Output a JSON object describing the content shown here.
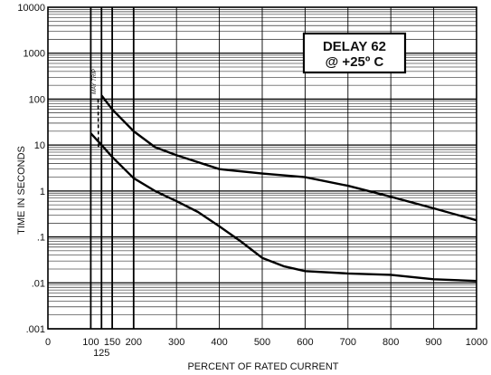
{
  "chart_data": {
    "type": "line",
    "title": "DELAY 62",
    "subtitle": "@ +25º C",
    "xlabel": "PERCENT OF RATED CURRENT",
    "ylabel": "TIME IN SECONDS",
    "x_scale": "linear",
    "y_scale": "log",
    "xlim": [
      0,
      1000
    ],
    "ylim": [
      0.001,
      10000
    ],
    "x_ticks": [
      {
        "value": 0,
        "label": "0"
      },
      {
        "value": 100,
        "label": "100"
      },
      {
        "value": 125,
        "label": "125"
      },
      {
        "value": 150,
        "label": "150"
      },
      {
        "value": 200,
        "label": "200"
      },
      {
        "value": 300,
        "label": "300"
      },
      {
        "value": 400,
        "label": "400"
      },
      {
        "value": 500,
        "label": "500"
      },
      {
        "value": 600,
        "label": "600"
      },
      {
        "value": 700,
        "label": "700"
      },
      {
        "value": 800,
        "label": "800"
      },
      {
        "value": 900,
        "label": "900"
      },
      {
        "value": 1000,
        "label": "1000"
      }
    ],
    "y_ticks": [
      {
        "value": 10000,
        "label": "10000"
      },
      {
        "value": 1000,
        "label": "1000"
      },
      {
        "value": 100,
        "label": "100"
      },
      {
        "value": 10,
        "label": "10"
      },
      {
        "value": 1,
        "label": "1"
      },
      {
        "value": 0.1,
        "label": ".1"
      },
      {
        "value": 0.01,
        "label": ".01"
      },
      {
        "value": 0.001,
        "label": ".001"
      }
    ],
    "grid": true,
    "heavy_vertical_gridlines": [
      100,
      125,
      150,
      200
    ],
    "annotation": {
      "text": "MAY TRIP",
      "x": 115
    },
    "series": [
      {
        "style": "solid",
        "x": [
          125,
          150,
          200,
          250,
          300,
          400,
          500,
          600,
          700,
          800,
          900,
          1000
        ],
        "y": [
          120,
          60,
          20,
          9,
          6,
          3,
          2.4,
          2.0,
          1.3,
          0.75,
          0.42,
          0.23
        ]
      },
      {
        "style": "solid",
        "x": [
          100,
          125,
          150,
          200,
          250,
          300,
          350,
          400,
          450,
          500,
          550,
          600,
          700,
          800,
          900,
          1000
        ],
        "y": [
          18,
          10,
          5.5,
          1.9,
          1.0,
          0.6,
          0.35,
          0.17,
          0.08,
          0.035,
          0.023,
          0.018,
          0.016,
          0.015,
          0.012,
          0.011
        ]
      },
      {
        "style": "dashed",
        "x": [
          117,
          118
        ],
        "y": [
          100,
          8
        ]
      }
    ],
    "colors": {
      "line": "#000000",
      "grid": "#000000",
      "background": "#ffffff"
    }
  }
}
